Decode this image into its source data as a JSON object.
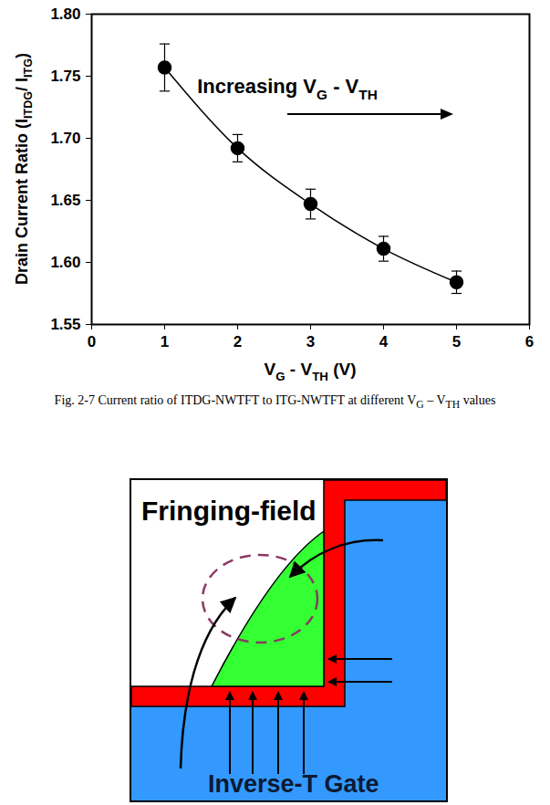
{
  "chart_data": {
    "type": "line",
    "marker": "circle",
    "line_style": "solid",
    "color": "#000000",
    "x": [
      1,
      2,
      3,
      4,
      5
    ],
    "values": [
      1.757,
      1.692,
      1.647,
      1.611,
      1.584
    ],
    "errors": [
      0.019,
      0.011,
      0.012,
      0.01,
      0.009
    ],
    "xlim": [
      0,
      6
    ],
    "xticks": [
      0,
      1,
      2,
      3,
      4,
      5,
      6
    ],
    "ylim": [
      1.55,
      1.8
    ],
    "yticks": [
      1.55,
      {
        "value": 1.6,
        "label": "1.60"
      },
      1.65,
      {
        "value": 1.7,
        "label": "1.70"
      },
      1.75,
      {
        "value": 1.8,
        "label": "1.80"
      }
    ],
    "x_label": [
      {
        "text": "V"
      },
      {
        "text": "G",
        "sub": true
      },
      {
        "text": " - V"
      },
      {
        "text": "TH",
        "sub": true
      },
      {
        "text": " (V)"
      }
    ],
    "y_label": [
      {
        "text": "Drain Current Ratio (I"
      },
      {
        "text": "ITDG",
        "sub": true
      },
      {
        "text": "/ I"
      },
      {
        "text": "ITG",
        "sub": true
      },
      {
        "text": ")"
      }
    ],
    "annotation": [
      {
        "text": "Increasing V"
      },
      {
        "text": "G",
        "sub": true
      },
      {
        "text": " - V"
      },
      {
        "text": "TH",
        "sub": true
      }
    ]
  },
  "caption": [
    {
      "text": "Fig. 2-7   Current ratio of ITDG-NWTFT to ITG-NWTFT at different V"
    },
    {
      "text": "G",
      "sub": true
    },
    {
      "text": " – V"
    },
    {
      "text": "TH",
      "sub": true
    },
    {
      "text": " values"
    }
  ],
  "diagram": {
    "labels": {
      "fringing": "Fringing-field",
      "gate": "Inverse-T Gate"
    }
  }
}
